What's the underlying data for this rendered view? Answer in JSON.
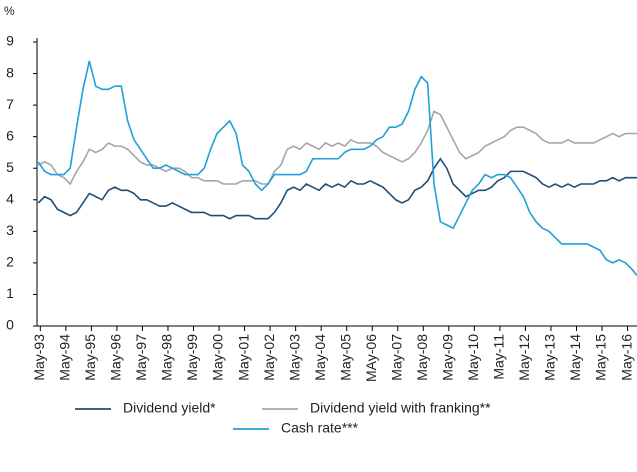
{
  "chart_data": {
    "type": "line",
    "y_unit_label": "%",
    "x": [
      1993.25,
      1993.5,
      1993.75,
      1994,
      1994.25,
      1994.5,
      1994.75,
      1995,
      1995.25,
      1995.5,
      1995.75,
      1996,
      1996.25,
      1996.5,
      1996.75,
      1997,
      1997.25,
      1997.5,
      1997.75,
      1998,
      1998.25,
      1998.5,
      1998.75,
      1999,
      1999.25,
      1999.5,
      1999.75,
      2000,
      2000.25,
      2000.5,
      2000.75,
      2001,
      2001.25,
      2001.5,
      2001.75,
      2002,
      2002.25,
      2002.5,
      2002.75,
      2003,
      2003.25,
      2003.5,
      2003.75,
      2004,
      2004.25,
      2004.5,
      2004.75,
      2005,
      2005.25,
      2005.5,
      2005.75,
      2006,
      2006.25,
      2006.5,
      2006.75,
      2007,
      2007.25,
      2007.5,
      2007.75,
      2008,
      2008.25,
      2008.5,
      2008.75,
      2009,
      2009.25,
      2009.5,
      2009.75,
      2010,
      2010.25,
      2010.5,
      2010.75,
      2011,
      2011.25,
      2011.5,
      2011.75,
      2012,
      2012.25,
      2012.5,
      2012.75,
      2013,
      2013.25,
      2013.5,
      2013.75,
      2014,
      2014.25,
      2014.5,
      2014.75,
      2015,
      2015.25,
      2015.5,
      2015.75,
      2016,
      2016.25,
      2016.5,
      2016.7
    ],
    "series": [
      {
        "name": "Dividend yield*",
        "color": "#1f4e79",
        "values": [
          3.9,
          4.1,
          4.0,
          3.7,
          3.6,
          3.5,
          3.6,
          3.9,
          4.2,
          4.1,
          4.0,
          4.3,
          4.4,
          4.3,
          4.3,
          4.2,
          4.0,
          4.0,
          3.9,
          3.8,
          3.8,
          3.9,
          3.8,
          3.7,
          3.6,
          3.6,
          3.6,
          3.5,
          3.5,
          3.5,
          3.4,
          3.5,
          3.5,
          3.5,
          3.4,
          3.4,
          3.4,
          3.6,
          3.9,
          4.3,
          4.4,
          4.3,
          4.5,
          4.4,
          4.3,
          4.5,
          4.4,
          4.5,
          4.4,
          4.6,
          4.5,
          4.5,
          4.6,
          4.5,
          4.4,
          4.2,
          4.0,
          3.9,
          4.0,
          4.3,
          4.4,
          4.6,
          5.0,
          5.3,
          5.0,
          4.5,
          4.3,
          4.1,
          4.2,
          4.3,
          4.3,
          4.4,
          4.6,
          4.7,
          4.9,
          4.9,
          4.9,
          4.8,
          4.7,
          4.5,
          4.4,
          4.5,
          4.4,
          4.5,
          4.4,
          4.5,
          4.5,
          4.5,
          4.6,
          4.6,
          4.7,
          4.6,
          4.7,
          4.7,
          4.7
        ]
      },
      {
        "name": "Dividend yield with franking**",
        "color": "#a6a6a6",
        "values": [
          5.1,
          5.2,
          5.1,
          4.8,
          4.7,
          4.5,
          4.9,
          5.2,
          5.6,
          5.5,
          5.6,
          5.8,
          5.7,
          5.7,
          5.6,
          5.4,
          5.2,
          5.1,
          5.1,
          5.0,
          4.9,
          5.0,
          5.0,
          4.9,
          4.7,
          4.7,
          4.6,
          4.6,
          4.6,
          4.5,
          4.5,
          4.5,
          4.6,
          4.6,
          4.6,
          4.5,
          4.5,
          4.9,
          5.1,
          5.6,
          5.7,
          5.6,
          5.8,
          5.7,
          5.6,
          5.8,
          5.7,
          5.8,
          5.7,
          5.9,
          5.8,
          5.8,
          5.8,
          5.7,
          5.5,
          5.4,
          5.3,
          5.2,
          5.3,
          5.5,
          5.8,
          6.2,
          6.8,
          6.7,
          6.3,
          5.9,
          5.5,
          5.3,
          5.4,
          5.5,
          5.7,
          5.8,
          5.9,
          6.0,
          6.2,
          6.3,
          6.3,
          6.2,
          6.1,
          5.9,
          5.8,
          5.8,
          5.8,
          5.9,
          5.8,
          5.8,
          5.8,
          5.8,
          5.9,
          6.0,
          6.1,
          6.0,
          6.1,
          6.1,
          6.1
        ]
      },
      {
        "name": "Cash rate***",
        "color": "#1fa0d8",
        "values": [
          5.2,
          4.9,
          4.8,
          4.8,
          4.8,
          5.0,
          6.3,
          7.5,
          8.4,
          7.6,
          7.5,
          7.5,
          7.6,
          7.6,
          6.5,
          5.9,
          5.6,
          5.3,
          5.0,
          5.0,
          5.1,
          5.0,
          4.9,
          4.8,
          4.8,
          4.8,
          5.0,
          5.6,
          6.1,
          6.3,
          6.5,
          6.1,
          5.1,
          4.9,
          4.5,
          4.3,
          4.5,
          4.8,
          4.8,
          4.8,
          4.8,
          4.8,
          4.9,
          5.3,
          5.3,
          5.3,
          5.3,
          5.3,
          5.5,
          5.6,
          5.6,
          5.6,
          5.7,
          5.9,
          6.0,
          6.3,
          6.3,
          6.4,
          6.8,
          7.5,
          7.9,
          7.7,
          4.5,
          3.3,
          3.2,
          3.1,
          3.5,
          3.9,
          4.3,
          4.5,
          4.8,
          4.7,
          4.8,
          4.8,
          4.7,
          4.4,
          4.1,
          3.6,
          3.3,
          3.1,
          3.0,
          2.8,
          2.6,
          2.6,
          2.6,
          2.6,
          2.6,
          2.5,
          2.4,
          2.1,
          2.0,
          2.1,
          2.0,
          1.8,
          1.6
        ]
      }
    ],
    "xlim": [
      1993.2,
      2016.7
    ],
    "xticks": [
      {
        "value": 1993.33,
        "label": "May-93"
      },
      {
        "value": 1994.33,
        "label": "May-94"
      },
      {
        "value": 1995.33,
        "label": "May-95"
      },
      {
        "value": 1996.33,
        "label": "May-96"
      },
      {
        "value": 1997.33,
        "label": "May-97"
      },
      {
        "value": 1998.33,
        "label": "May-98"
      },
      {
        "value": 1999.33,
        "label": "May-99"
      },
      {
        "value": 2000.33,
        "label": "May-00"
      },
      {
        "value": 2001.33,
        "label": "May-01"
      },
      {
        "value": 2002.33,
        "label": "May-02"
      },
      {
        "value": 2003.33,
        "label": "May-03"
      },
      {
        "value": 2004.33,
        "label": "May-04"
      },
      {
        "value": 2005.33,
        "label": "May-05"
      },
      {
        "value": 2006.33,
        "label": "MAy-06"
      },
      {
        "value": 2007.33,
        "label": "May-07"
      },
      {
        "value": 2008.33,
        "label": "May-08"
      },
      {
        "value": 2009.33,
        "label": "May-09"
      },
      {
        "value": 2010.33,
        "label": "May-10"
      },
      {
        "value": 2011.33,
        "label": "May-11"
      },
      {
        "value": 2012.33,
        "label": "May-12"
      },
      {
        "value": 2013.33,
        "label": "May-13"
      },
      {
        "value": 2014.33,
        "label": "May-14"
      },
      {
        "value": 2015.33,
        "label": "May-15"
      },
      {
        "value": 2016.33,
        "label": "May-16"
      }
    ],
    "ylim": [
      0,
      9
    ],
    "yticks": [
      0,
      1,
      2,
      3,
      4,
      5,
      6,
      7,
      8,
      9
    ],
    "grid": false
  }
}
